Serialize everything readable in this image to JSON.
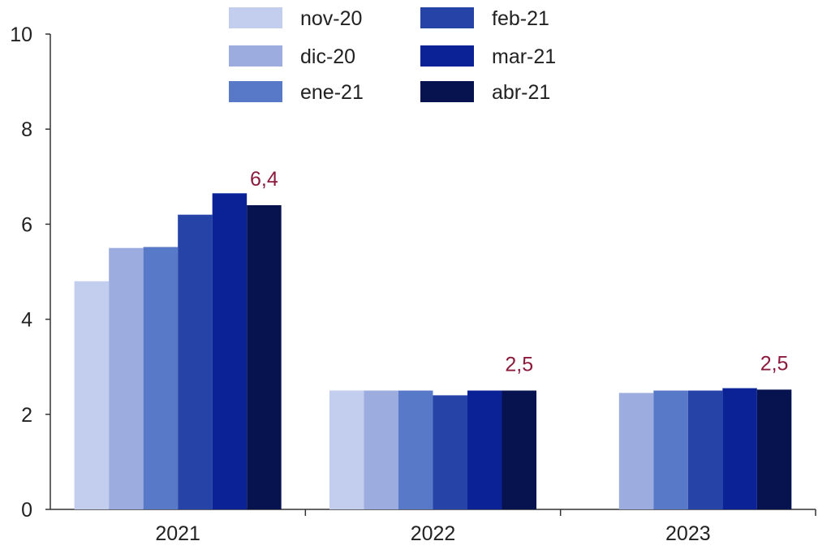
{
  "chart_data": {
    "type": "bar",
    "title": "",
    "xlabel": "",
    "ylabel": "",
    "ylim": [
      0,
      10
    ],
    "yticks": [
      "0",
      "2",
      "4",
      "6",
      "8",
      "10"
    ],
    "grid": false,
    "legend_position": "top",
    "categories": [
      "2021",
      "2022",
      "2023"
    ],
    "series": [
      {
        "name": "nov-20",
        "color": "#c3cdee",
        "values": [
          4.8,
          2.5,
          null
        ]
      },
      {
        "name": "dic-20",
        "color": "#9dacdf",
        "values": [
          5.5,
          2.5,
          2.45
        ]
      },
      {
        "name": "ene-21",
        "color": "#5878c8",
        "values": [
          5.52,
          2.5,
          2.5
        ]
      },
      {
        "name": "feb-21",
        "color": "#2643a8",
        "values": [
          6.2,
          2.4,
          2.5
        ]
      },
      {
        "name": "mar-21",
        "color": "#0a2296",
        "values": [
          6.65,
          2.5,
          2.55
        ]
      },
      {
        "name": "abr-21",
        "color": "#06134f",
        "values": [
          6.4,
          2.5,
          2.52
        ]
      }
    ],
    "annotations": [
      {
        "category": "2021",
        "series": "abr-21",
        "text": "6,4"
      },
      {
        "category": "2022",
        "series": "abr-21",
        "text": "2,5"
      },
      {
        "category": "2023",
        "series": "abr-21",
        "text": "2,5"
      }
    ]
  }
}
